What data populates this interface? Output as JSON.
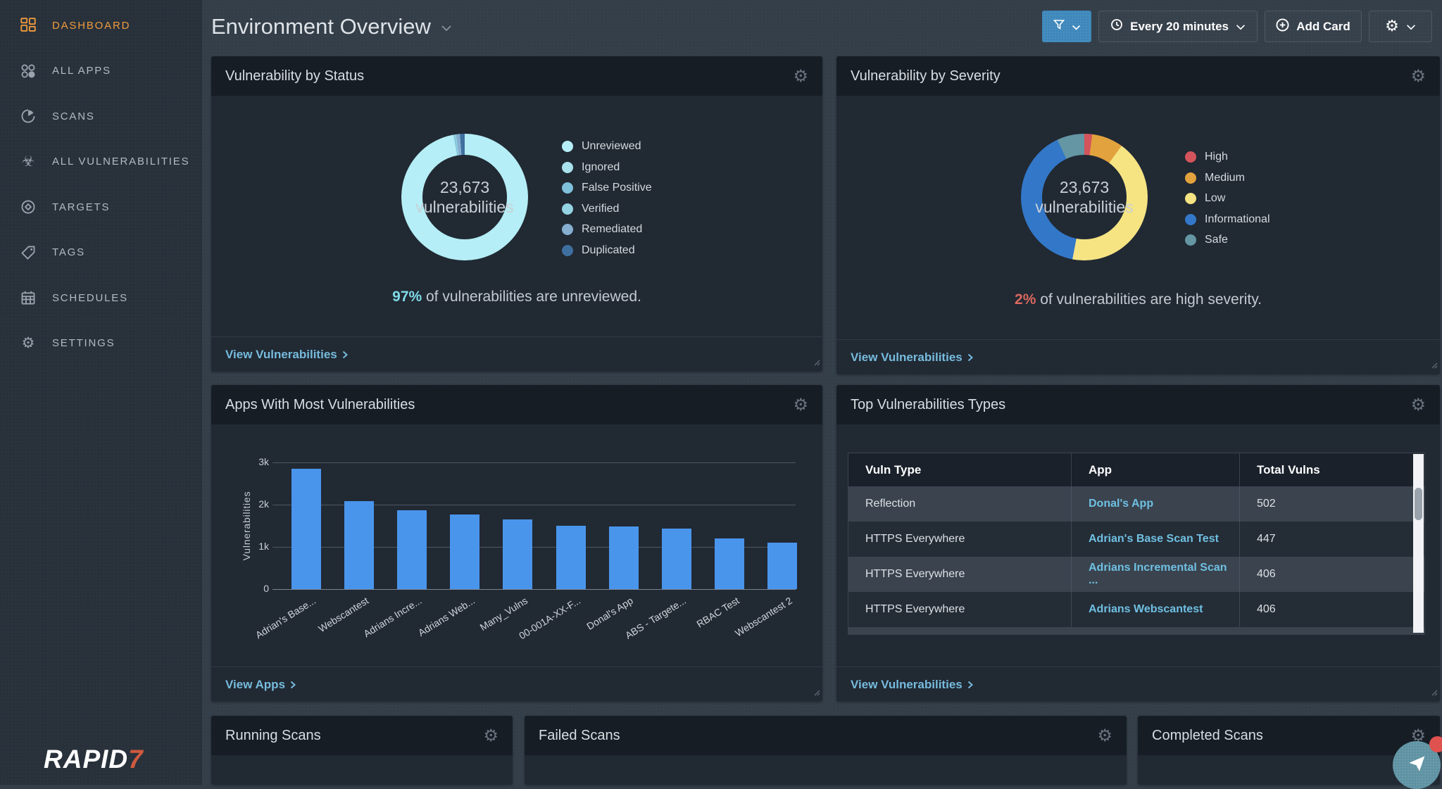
{
  "icons": {
    "gear": "⚙",
    "biohazard": "☣"
  },
  "sidebar": {
    "logo_text": "RAPID",
    "logo_accent": "7",
    "items": [
      {
        "id": "dashboard",
        "label": "DASHBOARD",
        "active": true
      },
      {
        "id": "all-apps",
        "label": "ALL APPS",
        "active": false
      },
      {
        "id": "scans",
        "label": "SCANS",
        "active": false
      },
      {
        "id": "all-vulnerabilities",
        "label": "ALL VULNERABILITIES",
        "active": false
      },
      {
        "id": "targets",
        "label": "TARGETS",
        "active": false
      },
      {
        "id": "tags",
        "label": "TAGS",
        "active": false
      },
      {
        "id": "schedules",
        "label": "SCHEDULES",
        "active": false
      },
      {
        "id": "settings",
        "label": "SETTINGS",
        "active": false
      }
    ]
  },
  "header": {
    "title": "Environment Overview",
    "refresh_label": "Every 20 minutes",
    "add_card_label": "Add Card"
  },
  "cards": {
    "status": {
      "title": "Vulnerability by Status",
      "center_value": "23,673",
      "center_label": "vulnerabilities",
      "statement_accent": "97%",
      "statement_accent_color": "#7fd9e8",
      "statement_rest": " of vulnerabilities are unreviewed.",
      "footer_link": "View Vulnerabilities"
    },
    "severity": {
      "title": "Vulnerability by Severity",
      "center_value": "23,673",
      "center_label": "vulnerabilities",
      "statement_accent": "2%",
      "statement_accent_color": "#d9685e",
      "statement_rest": " of vulnerabilities are high severity.",
      "footer_link": "View Vulnerabilities"
    },
    "apps": {
      "title": "Apps With Most Vulnerabilities",
      "footer_link": "View Apps"
    },
    "top_types": {
      "title": "Top Vulnerabilities Types",
      "footer_link": "View Vulnerabilities",
      "table": {
        "headers": [
          "Vuln Type",
          "App",
          "Total Vulns"
        ],
        "rows": [
          {
            "type": "Reflection",
            "app": "Donal's App",
            "total": "502"
          },
          {
            "type": "HTTPS Everywhere",
            "app": "Adrian's Base Scan Test",
            "total": "447"
          },
          {
            "type": "HTTPS Everywhere",
            "app": "Adrians Incremental Scan ...",
            "total": "406"
          },
          {
            "type": "HTTPS Everywhere",
            "app": "Adrians Webscantest",
            "total": "406"
          }
        ]
      }
    },
    "running": {
      "title": "Running Scans"
    },
    "failed": {
      "title": "Failed Scans"
    },
    "completed": {
      "title": "Completed Scans"
    }
  },
  "chart_data": [
    {
      "type": "pie",
      "title": "Vulnerability by Status",
      "total_label": "23,673 vulnerabilities",
      "annotation": "97% of vulnerabilities are unreviewed.",
      "series": [
        {
          "name": "Unreviewed",
          "value": 97,
          "color": "#b5eef6"
        },
        {
          "name": "Ignored",
          "value": 0.2,
          "color": "#a9e2ec"
        },
        {
          "name": "False Positive",
          "value": 0.3,
          "color": "#7fc0da"
        },
        {
          "name": "Verified",
          "value": 0.3,
          "color": "#94d3e3"
        },
        {
          "name": "Remediated",
          "value": 1.0,
          "color": "#85aed0"
        },
        {
          "name": "Duplicated",
          "value": 1.2,
          "color": "#3f6f9f"
        }
      ]
    },
    {
      "type": "pie",
      "title": "Vulnerability by Severity",
      "total_label": "23,673 vulnerabilities",
      "annotation": "2% of vulnerabilities are high severity.",
      "series": [
        {
          "name": "High",
          "value": 2,
          "color": "#d4545b"
        },
        {
          "name": "Medium",
          "value": 8,
          "color": "#e2a23e"
        },
        {
          "name": "Low",
          "value": 43,
          "color": "#f6e483"
        },
        {
          "name": "Informational",
          "value": 40,
          "color": "#3377c8"
        },
        {
          "name": "Safe",
          "value": 7,
          "color": "#6496a3"
        }
      ]
    },
    {
      "type": "bar",
      "title": "Apps With Most Vulnerabilities",
      "categories": [
        "Adrian's Base...",
        "Webscantest",
        "Adrians Incre...",
        "Adrians Web...",
        "Many_Vulns",
        "00-001A-XX-F...",
        "Donal's App",
        "ABS - Targete...",
        "RBAC Test",
        "Webscantest 2"
      ],
      "values": [
        2850,
        2080,
        1860,
        1770,
        1650,
        1500,
        1480,
        1430,
        1200,
        1100
      ],
      "xlabel": "",
      "ylabel": "Vulnerabilities",
      "ylim": [
        0,
        3000
      ],
      "yticks": [
        "0",
        "1k",
        "2k",
        "3k"
      ],
      "ytick_values": [
        0,
        1000,
        2000,
        3000
      ],
      "bar_color": "#4a95ec",
      "grid": true,
      "legend_position": "none"
    }
  ]
}
